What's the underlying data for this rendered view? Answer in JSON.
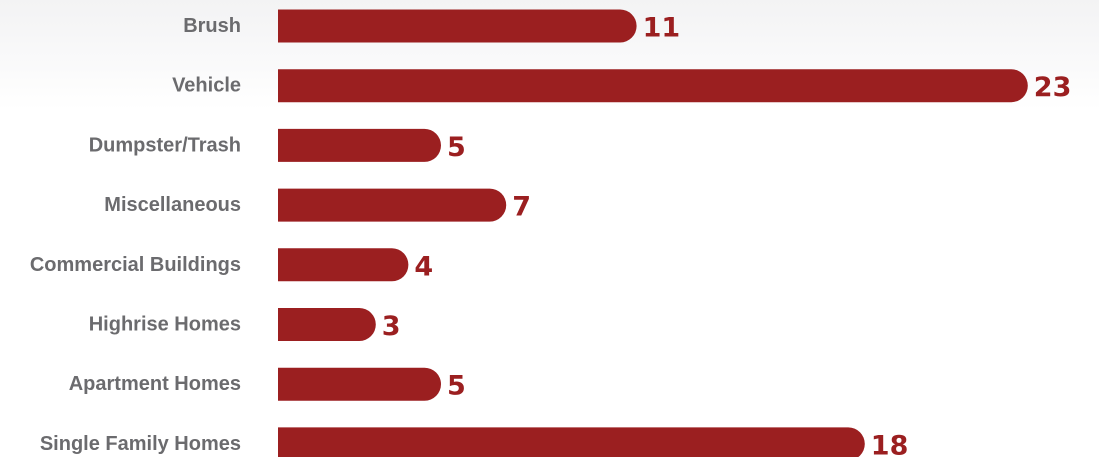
{
  "chart_data": {
    "type": "bar",
    "orientation": "horizontal",
    "categories": [
      "Brush",
      "Vehicle",
      "Dumpster/Trash",
      "Miscellaneous",
      "Commercial Buildings",
      "Highrise Homes",
      "Apartment Homes",
      "Single Family Homes"
    ],
    "values": [
      11,
      23,
      5,
      7,
      4,
      3,
      5,
      18
    ],
    "data_labels": [
      "11",
      "23",
      "5",
      "7",
      "4",
      "3",
      "5",
      "18"
    ],
    "title": "",
    "xlabel": "",
    "ylabel": "",
    "grid": false,
    "legend": "none",
    "bar_color": "#9b1f20",
    "label_color": "#6b6b6e"
  }
}
